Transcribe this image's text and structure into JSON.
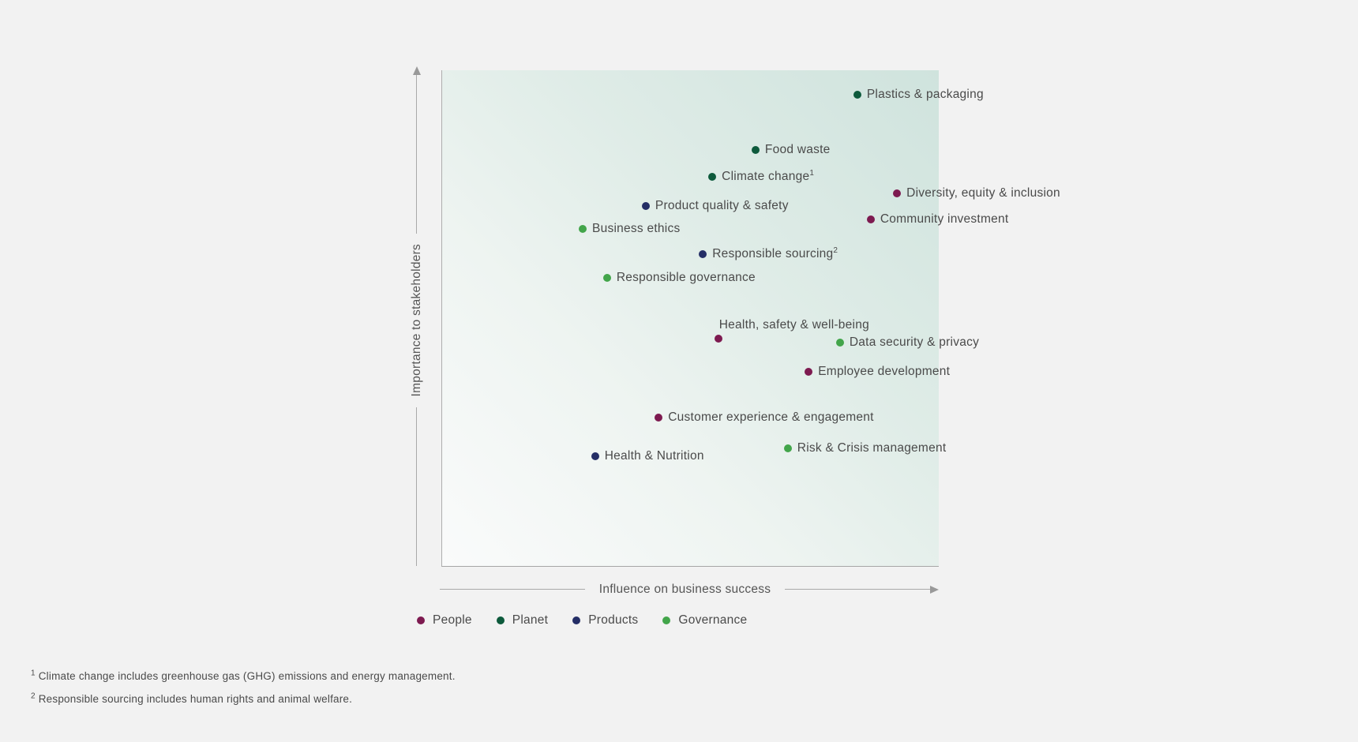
{
  "page": {
    "background_color": "#f2f2f2",
    "plot_gradient": [
      "#fafbfb",
      "#cfe3dd"
    ],
    "axis_color": "#a9a9a9",
    "text_color": "#4a4a4a"
  },
  "chart_data": {
    "type": "scatter",
    "title": "",
    "xlabel": "Influence on business success",
    "ylabel": "Importance to stakeholders",
    "axes_note": "qualitative axes, no tick labels; arrows indicate increasing direction; x range 0-100, y range 0-100 (estimated percent of plot area)",
    "xlim": [
      0,
      100
    ],
    "ylim": [
      0,
      100
    ],
    "grid": false,
    "legend_position": "bottom",
    "legend": [
      {
        "label": "People",
        "color": "#7d1a50"
      },
      {
        "label": "Planet",
        "color": "#0d5a3c"
      },
      {
        "label": "Products",
        "color": "#242e66"
      },
      {
        "label": "Governance",
        "color": "#42a54a"
      }
    ],
    "points": [
      {
        "label": "Plastics & packaging",
        "category": "Planet",
        "x": 83.6,
        "y": 95.1,
        "label_position": "right"
      },
      {
        "label": "Food waste",
        "category": "Planet",
        "x": 63.1,
        "y": 83.9,
        "label_position": "right"
      },
      {
        "label": "Climate change¹",
        "category": "Planet",
        "x": 54.4,
        "y": 78.5,
        "label_position": "right"
      },
      {
        "label": "Diversity, equity & inclusion",
        "category": "People",
        "x": 91.6,
        "y": 75.2,
        "label_position": "right"
      },
      {
        "label": "Product quality & safety",
        "category": "Products",
        "x": 41.0,
        "y": 72.6,
        "label_position": "right"
      },
      {
        "label": "Community investment",
        "category": "People",
        "x": 86.3,
        "y": 69.9,
        "label_position": "right"
      },
      {
        "label": "Business ethics",
        "category": "Governance",
        "x": 28.3,
        "y": 68.0,
        "label_position": "right"
      },
      {
        "label": "Responsible sourcing²",
        "category": "Products",
        "x": 52.5,
        "y": 62.9,
        "label_position": "right"
      },
      {
        "label": "Responsible governance",
        "category": "Governance",
        "x": 33.2,
        "y": 58.1,
        "label_position": "right"
      },
      {
        "label": "Health, safety & well-being",
        "category": "People",
        "x": 55.6,
        "y": 45.9,
        "label_position": "above"
      },
      {
        "label": "Data security & privacy",
        "category": "Governance",
        "x": 80.1,
        "y": 45.1,
        "label_position": "right"
      },
      {
        "label": "Employee development",
        "category": "People",
        "x": 73.8,
        "y": 39.2,
        "label_position": "right"
      },
      {
        "label": "Customer experience & engagement",
        "category": "People",
        "x": 43.6,
        "y": 29.9,
        "label_position": "right"
      },
      {
        "label": "Risk & Crisis management",
        "category": "Governance",
        "x": 69.6,
        "y": 23.7,
        "label_position": "right"
      },
      {
        "label": "Health & Nutrition",
        "category": "Products",
        "x": 30.8,
        "y": 22.1,
        "label_position": "right"
      }
    ]
  },
  "footnotes": [
    {
      "marker": "1",
      "text": "Climate change includes greenhouse gas (GHG) emissions and energy management."
    },
    {
      "marker": "2",
      "text": "Responsible sourcing includes human rights and animal welfare."
    }
  ]
}
